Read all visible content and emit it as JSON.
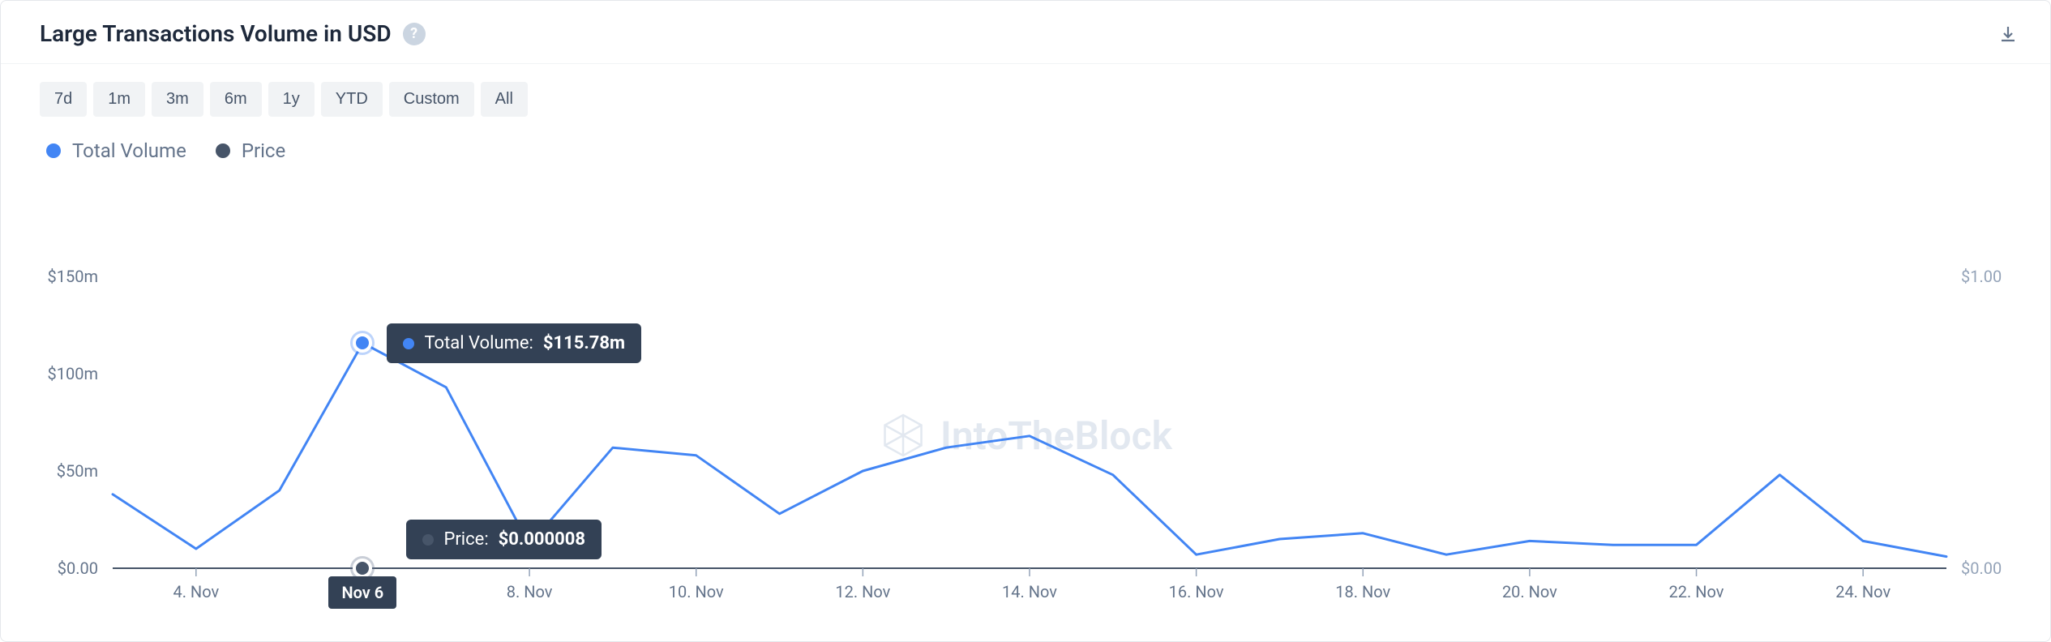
{
  "title": "Large Transactions Volume in USD",
  "help_icon": "?",
  "range_buttons": [
    "7d",
    "1m",
    "3m",
    "6m",
    "1y",
    "YTD",
    "Custom",
    "All"
  ],
  "legend": [
    {
      "label": "Total Volume",
      "color": "#4285f4"
    },
    {
      "label": "Price",
      "color": "#475569"
    }
  ],
  "watermark": "IntoTheBlock",
  "chart": {
    "type": "line",
    "background_color": "#ffffff",
    "axis_color": "#475569",
    "tick_color": "#94a3b8",
    "tick_fontsize": 20,
    "label_color": "#64748b",
    "label_color_right": "#94a3b8",
    "x_days": [
      3,
      4,
      5,
      6,
      7,
      8,
      9,
      10,
      11,
      12,
      13,
      14,
      15,
      16,
      17,
      18,
      19,
      20,
      21,
      22,
      23,
      24,
      25
    ],
    "x_tick_labels": [
      "4. Nov",
      "6. Nov",
      "8. Nov",
      "10. Nov",
      "12. Nov",
      "14. Nov",
      "16. Nov",
      "18. Nov",
      "20. Nov",
      "22. Nov",
      "24. Nov"
    ],
    "x_tick_days": [
      4,
      6,
      8,
      10,
      12,
      14,
      16,
      18,
      20,
      22,
      24
    ],
    "y_left": {
      "lim": [
        0,
        150
      ],
      "ticks": [
        0,
        50,
        100,
        150
      ],
      "labels": [
        "$0.00",
        "$50m",
        "$100m",
        "$150m"
      ]
    },
    "y_right": {
      "lim": [
        0,
        1
      ],
      "ticks": [
        0,
        1
      ],
      "labels": [
        "$0.00",
        "$1.00"
      ]
    },
    "series": {
      "volume": {
        "color": "#4285f4",
        "line_width": 3,
        "values_m": [
          38,
          10,
          40,
          115.78,
          93,
          12,
          62,
          58,
          28,
          50,
          62,
          68,
          48,
          7,
          15,
          18,
          7,
          14,
          12,
          12,
          48,
          14,
          6
        ]
      },
      "price": {
        "color": "#475569",
        "line_width": 2,
        "value": 8e-06,
        "flat_y": 0
      }
    },
    "hover": {
      "day": 6,
      "volume": {
        "label": "Total Volume:",
        "value": "$115.78m",
        "dot_color": "#4285f4"
      },
      "price": {
        "label": "Price:",
        "value": "$0.000008",
        "dot_color": "#475569"
      },
      "date_label": "Nov 6"
    }
  },
  "colors": {
    "card_border": "#e5e7eb",
    "header_divider": "#f1f3f5",
    "btn_bg": "#f1f3f5",
    "btn_text": "#475569",
    "title": "#1e293b",
    "help_bg": "#cbd5e1"
  }
}
